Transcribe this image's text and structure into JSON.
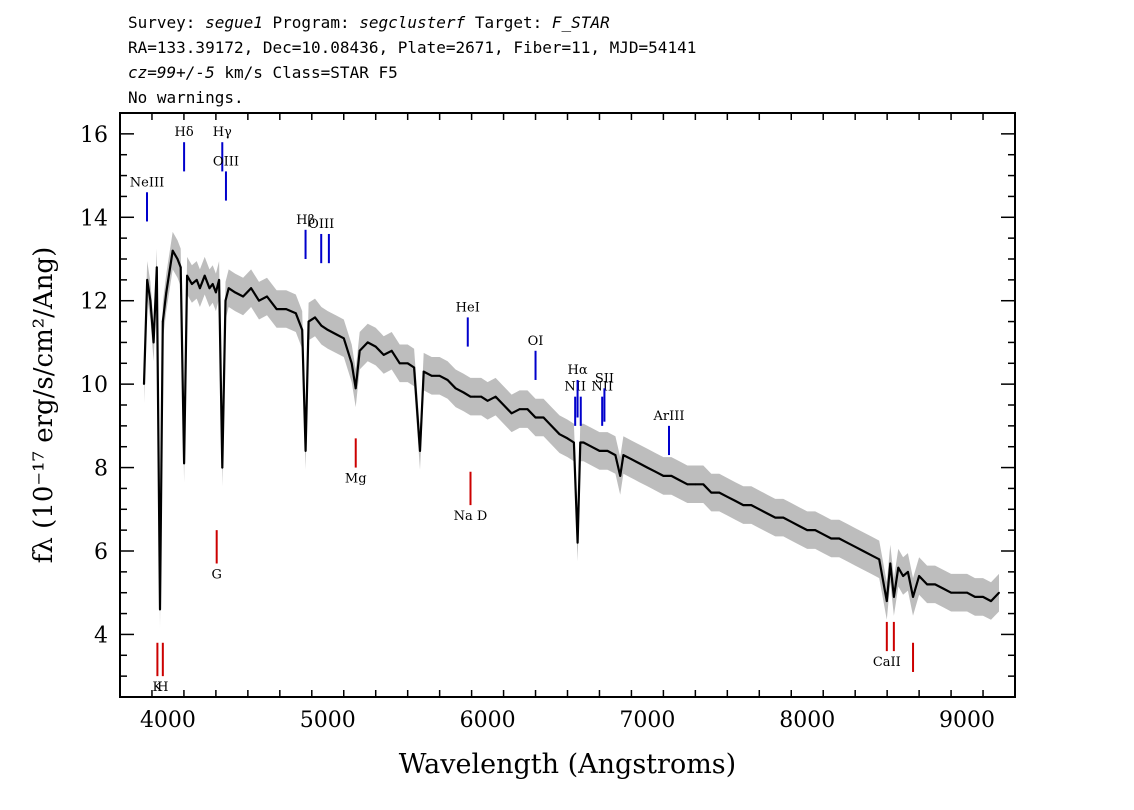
{
  "header": {
    "survey_label": "Survey:",
    "survey": "segue1",
    "program_label": "Program:",
    "program": "segclusterf",
    "target_label": "Target:",
    "target": "F_STAR",
    "line2": "RA=133.39172, Dec=10.08436, Plate=2671, Fiber=11, MJD=54141",
    "cz": "cz=99+/-5",
    "line3_rest": " km/s Class=STAR F5",
    "line4": "No warnings."
  },
  "chart_data": {
    "type": "line",
    "xlabel": "Wavelength (Angstroms)",
    "ylabel": "fλ (10⁻¹⁷ erg/s/cm²/Ang)",
    "xlim": [
      3700,
      9300
    ],
    "ylim": [
      2.5,
      16.5
    ],
    "xticks": [
      4000,
      5000,
      6000,
      7000,
      8000,
      9000
    ],
    "yticks": [
      4,
      6,
      8,
      10,
      12,
      14,
      16
    ],
    "grid": false,
    "colors": {
      "flux": "#000000",
      "error_band": "#bdbdbd",
      "emission": "#0000cc",
      "absorption": "#cc0000"
    },
    "series": [
      {
        "name": "",
        "x": [
          3850,
          3870,
          3890,
          3910,
          3930,
          3950,
          3968,
          3990,
          4010,
          4030,
          4060,
          4080,
          4101,
          4120,
          4150,
          4180,
          4200,
          4230,
          4260,
          4280,
          4300,
          4320,
          4340,
          4360,
          4380,
          4420,
          4470,
          4520,
          4570,
          4620,
          4680,
          4740,
          4800,
          4840,
          4861,
          4880,
          4920,
          4960,
          5000,
          5050,
          5100,
          5150,
          5175,
          5200,
          5250,
          5300,
          5350,
          5400,
          5450,
          5500,
          5540,
          5577,
          5600,
          5650,
          5700,
          5750,
          5800,
          5850,
          5893,
          5920,
          5960,
          6000,
          6050,
          6100,
          6150,
          6200,
          6250,
          6300,
          6350,
          6400,
          6450,
          6500,
          6540,
          6563,
          6580,
          6600,
          6650,
          6700,
          6750,
          6800,
          6830,
          6850,
          6900,
          6950,
          7000,
          7050,
          7100,
          7150,
          7200,
          7250,
          7300,
          7350,
          7400,
          7450,
          7500,
          7550,
          7600,
          7650,
          7700,
          7750,
          7800,
          7850,
          7900,
          7950,
          8000,
          8050,
          8100,
          8150,
          8200,
          8250,
          8300,
          8350,
          8400,
          8450,
          8498,
          8520,
          8542,
          8570,
          8600,
          8630,
          8662,
          8700,
          8750,
          8800,
          8850,
          8900,
          8950,
          9000,
          9050,
          9100,
          9150,
          9200
        ],
        "y": [
          10.0,
          12.5,
          12.0,
          11.0,
          12.8,
          4.6,
          11.5,
          12.2,
          12.7,
          13.2,
          13.0,
          12.8,
          8.1,
          12.6,
          12.4,
          12.5,
          12.3,
          12.6,
          12.3,
          12.4,
          12.2,
          12.5,
          8.0,
          12.0,
          12.3,
          12.2,
          12.1,
          12.3,
          12.0,
          12.1,
          11.8,
          11.8,
          11.7,
          11.3,
          8.4,
          11.5,
          11.6,
          11.4,
          11.3,
          11.2,
          11.1,
          10.5,
          9.9,
          10.8,
          11.0,
          10.9,
          10.7,
          10.8,
          10.5,
          10.5,
          10.4,
          8.4,
          10.3,
          10.2,
          10.2,
          10.1,
          9.9,
          9.8,
          9.7,
          9.7,
          9.7,
          9.6,
          9.7,
          9.5,
          9.3,
          9.4,
          9.4,
          9.2,
          9.2,
          9.0,
          8.8,
          8.7,
          8.6,
          6.2,
          8.6,
          8.6,
          8.5,
          8.4,
          8.4,
          8.3,
          7.8,
          8.3,
          8.2,
          8.1,
          8.0,
          7.9,
          7.8,
          7.8,
          7.7,
          7.6,
          7.6,
          7.6,
          7.4,
          7.4,
          7.3,
          7.2,
          7.1,
          7.1,
          7.0,
          6.9,
          6.8,
          6.8,
          6.7,
          6.6,
          6.5,
          6.5,
          6.4,
          6.3,
          6.3,
          6.2,
          6.1,
          6.0,
          5.9,
          5.8,
          4.8,
          5.7,
          4.9,
          5.6,
          5.4,
          5.5,
          4.9,
          5.4,
          5.2,
          5.2,
          5.1,
          5.0,
          5.0,
          5.0,
          4.9,
          4.9,
          4.8,
          5.0
        ]
      }
    ],
    "line_markers": [
      {
        "label": "NeIII",
        "x": 3869,
        "kind": "emission",
        "y_top": 14.6,
        "y_bottom": 13.9
      },
      {
        "label": "Hδ",
        "x": 4101,
        "kind": "emission",
        "y_top": 15.8,
        "y_bottom": 15.1
      },
      {
        "label": "Hγ",
        "x": 4340,
        "kind": "emission",
        "y_top": 15.8,
        "y_bottom": 15.1
      },
      {
        "label": "OIII",
        "x": 4363,
        "kind": "emission",
        "y_top": 15.1,
        "y_bottom": 14.4
      },
      {
        "label": "Hβ",
        "x": 4861,
        "kind": "emission",
        "y_top": 13.7,
        "y_bottom": 13.0
      },
      {
        "label": "OIII",
        "x": 4959,
        "kind": "emission",
        "y_top": 13.6,
        "y_bottom": 12.9
      },
      {
        "label": "",
        "x": 5007,
        "kind": "emission",
        "y_top": 13.6,
        "y_bottom": 12.9
      },
      {
        "label": "HeI",
        "x": 5876,
        "kind": "emission",
        "y_top": 11.6,
        "y_bottom": 10.9
      },
      {
        "label": "OI",
        "x": 6300,
        "kind": "emission",
        "y_top": 10.8,
        "y_bottom": 10.1
      },
      {
        "label": "NII",
        "x": 6548,
        "kind": "emission",
        "y_top": 9.7,
        "y_bottom": 9.0
      },
      {
        "label": "Hα",
        "x": 6563,
        "kind": "emission",
        "y_top": 10.1,
        "y_bottom": 9.2
      },
      {
        "label": "",
        "x": 6583,
        "kind": "emission",
        "y_top": 9.7,
        "y_bottom": 9.0
      },
      {
        "label": "NII",
        "x": 6717,
        "kind": "emission",
        "y_top": 9.7,
        "y_bottom": 9.0
      },
      {
        "label": "SII",
        "x": 6731,
        "kind": "emission",
        "y_top": 9.9,
        "y_bottom": 9.1
      },
      {
        "label": "ArIII",
        "x": 7135,
        "kind": "emission",
        "y_top": 9.0,
        "y_bottom": 8.3
      },
      {
        "label": "K",
        "x": 3934,
        "kind": "absorption",
        "y_top": 3.8,
        "y_bottom": 3.0
      },
      {
        "label": "H",
        "x": 3968,
        "kind": "absorption",
        "y_top": 3.8,
        "y_bottom": 3.0
      },
      {
        "label": "G",
        "x": 4305,
        "kind": "absorption",
        "y_top": 6.5,
        "y_bottom": 5.7
      },
      {
        "label": "Mg",
        "x": 5175,
        "kind": "absorption",
        "y_top": 8.7,
        "y_bottom": 8.0
      },
      {
        "label": "Na D",
        "x": 5893,
        "kind": "absorption",
        "y_top": 7.9,
        "y_bottom": 7.1
      },
      {
        "label": "CaII",
        "x": 8498,
        "kind": "absorption",
        "y_top": 4.3,
        "y_bottom": 3.6
      },
      {
        "label": "",
        "x": 8542,
        "kind": "absorption",
        "y_top": 4.3,
        "y_bottom": 3.6
      },
      {
        "label": "",
        "x": 8662,
        "kind": "absorption",
        "y_top": 3.8,
        "y_bottom": 3.1
      }
    ]
  }
}
